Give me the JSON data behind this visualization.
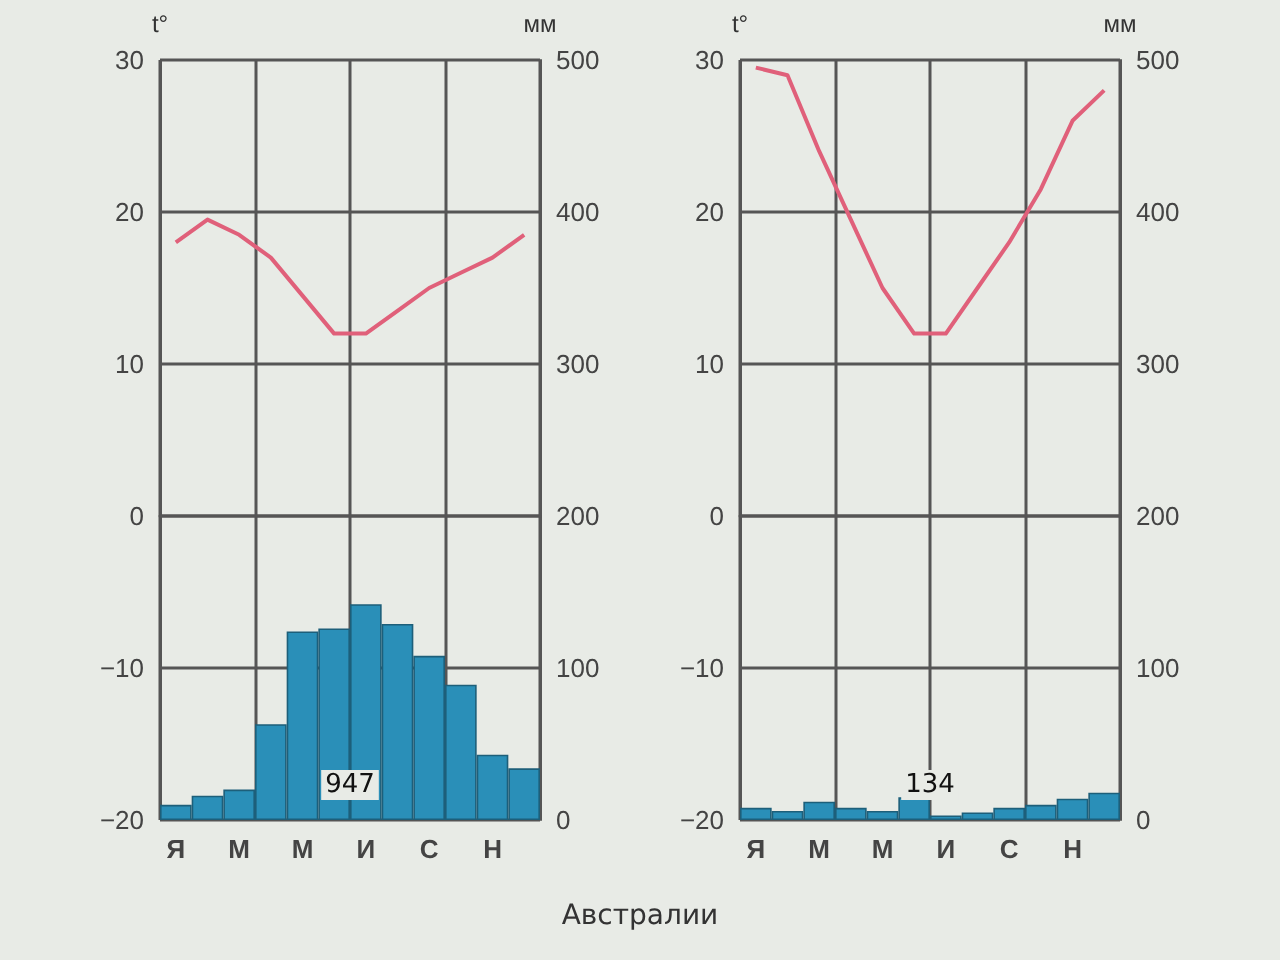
{
  "chart_data": [
    {
      "type": "bar",
      "ylabel": "t°",
      "y2label": "мм",
      "categories": [
        "Я",
        null,
        "М",
        null,
        "М",
        null,
        "И",
        null,
        "С",
        null,
        "Н",
        null
      ],
      "series": [
        {
          "type": "line",
          "color": "#e0607a",
          "values": [
            18,
            19.5,
            18.5,
            17,
            14.5,
            12,
            12,
            13.5,
            15,
            16,
            17,
            18.5
          ]
        },
        {
          "axis": "y2",
          "color": "#2a8fb8",
          "values": [
            10,
            16,
            20,
            63,
            124,
            126,
            142,
            129,
            108,
            89,
            43,
            34
          ]
        }
      ],
      "ylim": [
        -20,
        30
      ],
      "yticks": [
        -20,
        -10,
        0,
        10,
        20,
        30
      ],
      "y2lim": [
        0,
        500
      ],
      "y2ticks": [
        0,
        100,
        200,
        300,
        400,
        500
      ],
      "grid": true,
      "marker": "none",
      "annotations": [
        "947"
      ]
    },
    {
      "type": "bar",
      "ylabel": "t°",
      "y2label": "мм",
      "categories": [
        "Я",
        null,
        "М",
        null,
        "М",
        null,
        "И",
        null,
        "С",
        null,
        "Н",
        null
      ],
      "series": [
        {
          "type": "line",
          "color": "#e0607a",
          "values": [
            29.5,
            29,
            24,
            19.5,
            15,
            12,
            12,
            15,
            18,
            21.5,
            26,
            28
          ]
        },
        {
          "axis": "y2",
          "color": "#2a8fb8",
          "values": [
            8,
            6,
            12,
            8,
            6,
            15,
            3,
            5,
            8,
            10,
            14,
            18
          ]
        }
      ],
      "ylim": [
        -20,
        30
      ],
      "yticks": [
        -20,
        -10,
        0,
        10,
        20,
        30
      ],
      "y2lim": [
        0,
        500
      ],
      "y2ticks": [
        0,
        100,
        200,
        300,
        400,
        500
      ],
      "grid": true,
      "marker": "none",
      "annotations": [
        "134",
        "Австралии"
      ]
    }
  ]
}
